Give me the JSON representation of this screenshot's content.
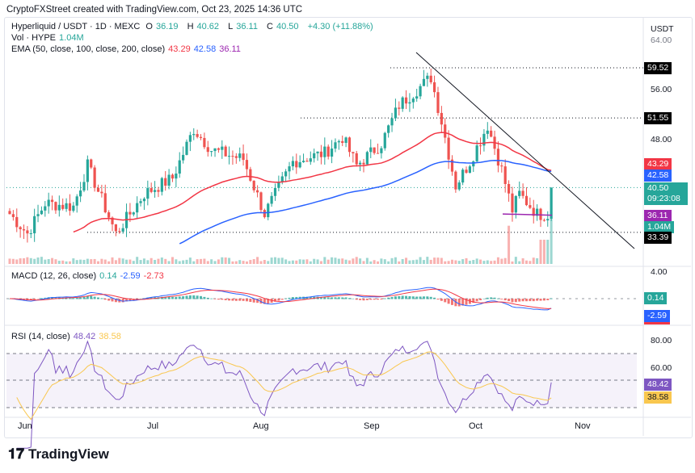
{
  "credit": "CryptoFXStreet created with TradingView.com, Oct 23, 2025 14:36 UTC",
  "symbol": {
    "title": "Hyperliquid / USDT · 1D · MEXC",
    "o_label": "O",
    "o": "36.19",
    "h_label": "H",
    "h": "40.62",
    "l_label": "L",
    "l": "36.11",
    "c_label": "C",
    "c": "40.50",
    "change": "+4.30 (+11.88%)"
  },
  "volume": {
    "label": "Vol · HYPE",
    "value": "1.04M"
  },
  "ema": {
    "label": "EMA (50, close, 100, close, 200, close)",
    "v50": "43.29",
    "v100": "42.58",
    "v200": "36.11"
  },
  "macd": {
    "label": "MACD (12, 26, close)",
    "hist": "0.14",
    "macd": "-2.59",
    "signal": "-2.73"
  },
  "rsi": {
    "label": "RSI (14, close)",
    "rsi": "48.42",
    "ma": "38.58"
  },
  "axis": {
    "currency": "USDT",
    "p64": "64.00",
    "p56": "56.00",
    "p48": "48.00",
    "m4": "4.00",
    "r80": "80.00",
    "r60": "60.00"
  },
  "tags": {
    "high1": "59.52",
    "high2": "51.55",
    "ema50": "43.29",
    "ema100": "42.58",
    "last": "40.50",
    "countdown": "09:23:08",
    "ema200": "36.11",
    "vol": "1.04M",
    "support": "33.39",
    "hist": "0.14",
    "macd": "-2.59",
    "rsi": "48.42",
    "rsima": "38.58"
  },
  "months": [
    "Jun",
    "Jul",
    "Aug",
    "Sep",
    "Oct",
    "Nov"
  ],
  "brand": "TradingView",
  "colors": {
    "up": "#26a69a",
    "down": "#ef5350",
    "ema50": "#f23645",
    "ema100": "#2962ff",
    "ema200": "#9c27b0",
    "rsi": "#7e57c2",
    "rsima": "#f9c74f"
  },
  "chart_data": {
    "type": "candlestick",
    "title": "Hyperliquid / USDT · 1D · MEXC",
    "ylim": [
      31,
      64
    ],
    "levels": [
      59.52,
      51.55,
      40.5,
      33.39
    ],
    "close_keypoints": [
      [
        0,
        36.3
      ],
      [
        5,
        33.2
      ],
      [
        10,
        38
      ],
      [
        18,
        37.5
      ],
      [
        22,
        44
      ],
      [
        30,
        33.2
      ],
      [
        38,
        39.5
      ],
      [
        46,
        42
      ],
      [
        52,
        49.8
      ],
      [
        57,
        46.5
      ],
      [
        66,
        45
      ],
      [
        72,
        36.3
      ],
      [
        80,
        44.6
      ],
      [
        89,
        46
      ],
      [
        94,
        48.5
      ],
      [
        98,
        44
      ],
      [
        105,
        47.5
      ],
      [
        110,
        53.6
      ],
      [
        119,
        58
      ],
      [
        122,
        51
      ],
      [
        126,
        40.8
      ],
      [
        130,
        44.6
      ],
      [
        135,
        50.4
      ],
      [
        139,
        43.3
      ],
      [
        142,
        36.9
      ],
      [
        144,
        39.5
      ],
      [
        149,
        36.3
      ],
      [
        152,
        36.2
      ],
      [
        153,
        40.5
      ]
    ]
  }
}
